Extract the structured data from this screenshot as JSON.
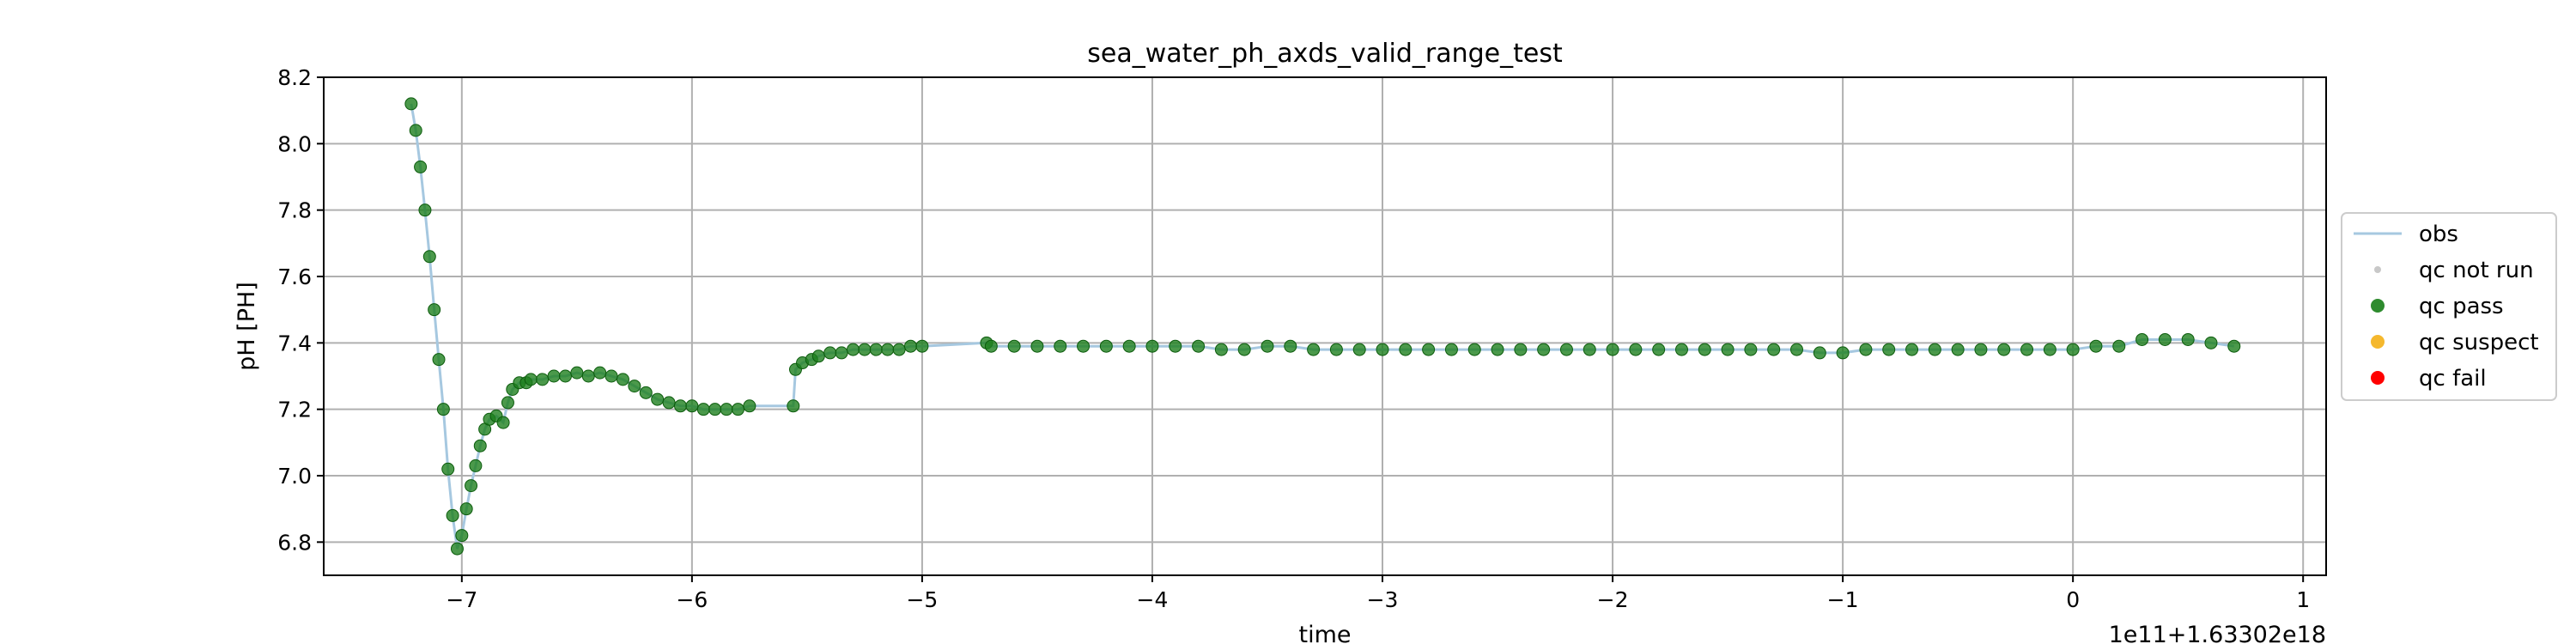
{
  "chart_data": {
    "type": "scatter",
    "title": "sea_water_ph_axds_valid_range_test",
    "xlabel": "time",
    "ylabel": "pH [PH]",
    "x_offset_label": "1e11+1.63302e18",
    "xlim": [
      -7.6,
      1.1
    ],
    "ylim": [
      6.7,
      8.2
    ],
    "xticks": [
      -7,
      -6,
      -5,
      -4,
      -3,
      -2,
      -1,
      0,
      1
    ],
    "xtick_labels": [
      "−7",
      "−6",
      "−5",
      "−4",
      "−3",
      "−2",
      "−1",
      "0",
      "1"
    ],
    "yticks": [
      6.8,
      7.0,
      7.2,
      7.4,
      7.6,
      7.8,
      8.0,
      8.2
    ],
    "ytick_labels": [
      "6.8",
      "7.0",
      "7.2",
      "7.4",
      "7.6",
      "7.8",
      "8.0",
      "8.2"
    ],
    "grid": true,
    "legend_placement": "right, outside plot",
    "legend": [
      {
        "label": "obs",
        "kind": "line",
        "color": "#a6c8e0"
      },
      {
        "label": "qc not run",
        "kind": "dot",
        "color": "#c8c8c8"
      },
      {
        "label": "qc pass",
        "kind": "dot",
        "color": "#2e8b2e"
      },
      {
        "label": "qc suspect",
        "kind": "dot",
        "color": "#f5b82e"
      },
      {
        "label": "qc fail",
        "kind": "dot",
        "color": "#ff0000"
      }
    ],
    "series": [
      {
        "name": "qc pass",
        "color": "#1e7f1e",
        "x": [
          -7.22,
          -7.2,
          -7.18,
          -7.16,
          -7.14,
          -7.12,
          -7.1,
          -7.08,
          -7.06,
          -7.04,
          -7.02,
          -7.0,
          -6.98,
          -6.96,
          -6.94,
          -6.92,
          -6.9,
          -6.88,
          -6.85,
          -6.82,
          -6.8,
          -6.78,
          -6.75,
          -6.72,
          -6.7,
          -6.65,
          -6.6,
          -6.55,
          -6.5,
          -6.45,
          -6.4,
          -6.35,
          -6.3,
          -6.25,
          -6.2,
          -6.15,
          -6.1,
          -6.05,
          -6.0,
          -5.95,
          -5.9,
          -5.85,
          -5.8,
          -5.75,
          -5.56,
          -5.55,
          -5.52,
          -5.48,
          -5.45,
          -5.4,
          -5.35,
          -5.3,
          -5.25,
          -5.2,
          -5.15,
          -5.1,
          -5.05,
          -5.0,
          -4.72,
          -4.7,
          -4.6,
          -4.5,
          -4.4,
          -4.3,
          -4.2,
          -4.1,
          -4.0,
          -3.9,
          -3.8,
          -3.7,
          -3.6,
          -3.5,
          -3.4,
          -3.3,
          -3.2,
          -3.1,
          -3.0,
          -2.9,
          -2.8,
          -2.7,
          -2.6,
          -2.5,
          -2.4,
          -2.3,
          -2.2,
          -2.1,
          -2.0,
          -1.9,
          -1.8,
          -1.7,
          -1.6,
          -1.5,
          -1.4,
          -1.3,
          -1.2,
          -1.1,
          -1.0,
          -0.9,
          -0.8,
          -0.7,
          -0.6,
          -0.5,
          -0.4,
          -0.3,
          -0.2,
          -0.1,
          0.0,
          0.1,
          0.2,
          0.3,
          0.4,
          0.5,
          0.6,
          0.7
        ],
        "y": [
          8.12,
          8.04,
          7.93,
          7.8,
          7.66,
          7.5,
          7.35,
          7.2,
          7.02,
          6.88,
          6.78,
          6.82,
          6.9,
          6.97,
          7.03,
          7.09,
          7.14,
          7.17,
          7.18,
          7.16,
          7.22,
          7.26,
          7.28,
          7.28,
          7.29,
          7.29,
          7.3,
          7.3,
          7.31,
          7.3,
          7.31,
          7.3,
          7.29,
          7.27,
          7.25,
          7.23,
          7.22,
          7.21,
          7.21,
          7.2,
          7.2,
          7.2,
          7.2,
          7.21,
          7.21,
          7.32,
          7.34,
          7.35,
          7.36,
          7.37,
          7.37,
          7.38,
          7.38,
          7.38,
          7.38,
          7.38,
          7.39,
          7.39,
          7.4,
          7.39,
          7.39,
          7.39,
          7.39,
          7.39,
          7.39,
          7.39,
          7.39,
          7.39,
          7.39,
          7.38,
          7.38,
          7.39,
          7.39,
          7.38,
          7.38,
          7.38,
          7.38,
          7.38,
          7.38,
          7.38,
          7.38,
          7.38,
          7.38,
          7.38,
          7.38,
          7.38,
          7.38,
          7.38,
          7.38,
          7.38,
          7.38,
          7.38,
          7.38,
          7.38,
          7.38,
          7.37,
          7.37,
          7.38,
          7.38,
          7.38,
          7.38,
          7.38,
          7.38,
          7.38,
          7.38,
          7.38,
          7.38,
          7.39,
          7.39,
          7.41,
          7.41,
          7.41,
          7.4,
          7.39
        ]
      }
    ]
  }
}
